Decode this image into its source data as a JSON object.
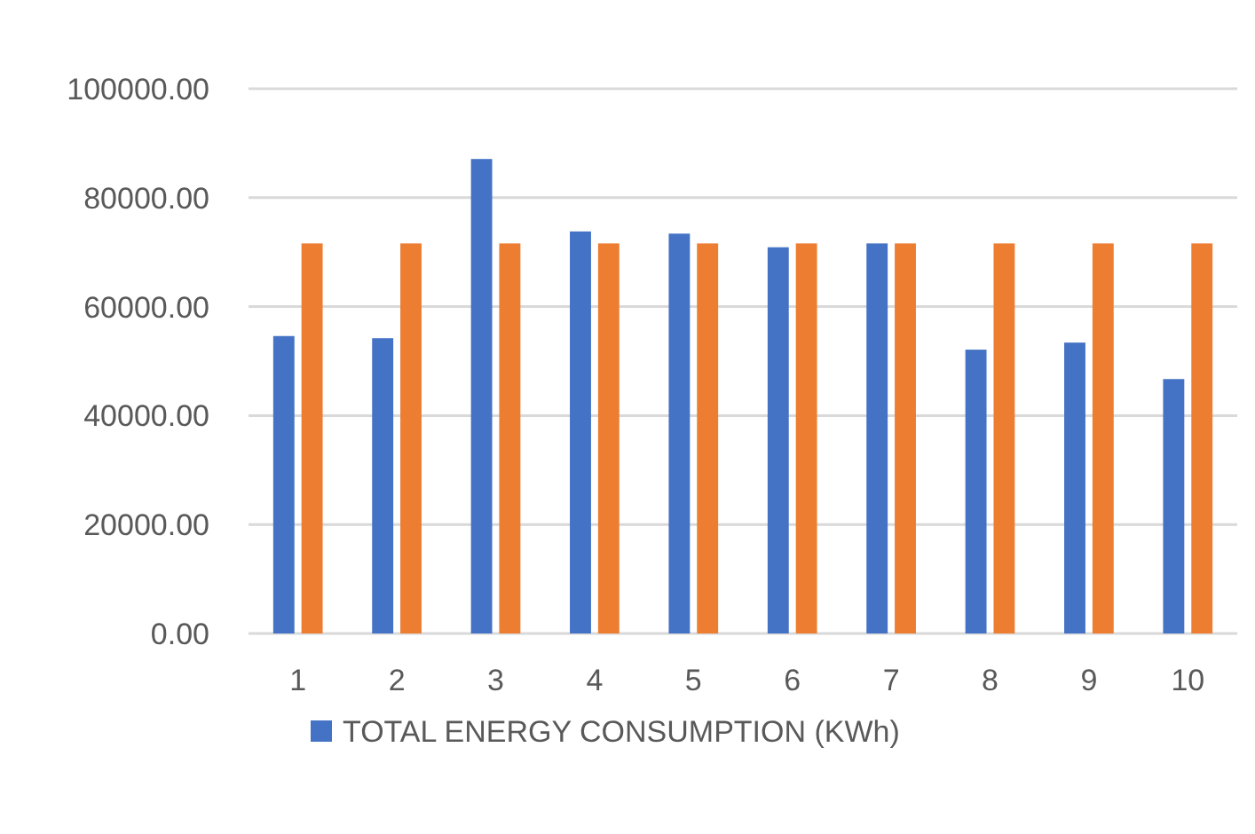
{
  "chart_data": {
    "type": "bar",
    "categories": [
      "1",
      "2",
      "3",
      "4",
      "5",
      "6",
      "7",
      "8",
      "9",
      "10"
    ],
    "series": [
      {
        "name": "TOTAL ENERGY CONSUMPTION (KWh)",
        "color": "#4472c4",
        "values": [
          54600,
          54200,
          87100,
          73800,
          73400,
          70900,
          71600,
          52100,
          53400,
          46700
        ]
      },
      {
        "color": "#ed7d31",
        "values": [
          71600,
          71600,
          71600,
          71600,
          71600,
          71600,
          71600,
          71600,
          71600,
          71600
        ]
      }
    ],
    "ylim": [
      0,
      100000
    ],
    "yticks": [
      {
        "value": 0,
        "label": "0.00"
      },
      {
        "value": 20000,
        "label": "20000.00"
      },
      {
        "value": 40000,
        "label": "40000.00"
      },
      {
        "value": 60000,
        "label": "60000.00"
      },
      {
        "value": 80000,
        "label": "80000.00"
      },
      {
        "value": 100000,
        "label": "100000.00"
      }
    ],
    "grid": "y",
    "legend": "bottom"
  }
}
